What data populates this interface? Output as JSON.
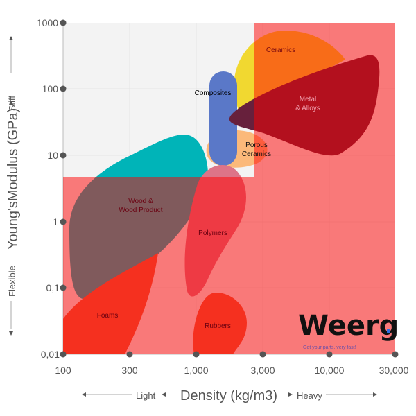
{
  "y_axis": {
    "title": "Young'sModulus (GPa)",
    "high_label": "Stiff",
    "low_label": "Flexible",
    "ticks": [
      "1000",
      "100",
      "10",
      "1",
      "0,1",
      "0,01"
    ]
  },
  "x_axis": {
    "title": "Density (kg/m3)",
    "low_label": "Light",
    "high_label": "Heavy",
    "ticks": [
      "100",
      "300",
      "1,000",
      "3,000",
      "10,000",
      "30,000"
    ]
  },
  "materials": [
    {
      "name": "Ceramics",
      "label": "Ceramics",
      "color": "#f1d830"
    },
    {
      "name": "Metal & Alloys",
      "label1": "Metal",
      "label2": "& Alloys",
      "color": "#67203c"
    },
    {
      "name": "Composites",
      "label": "Composites",
      "color": "#5a78c8"
    },
    {
      "name": "Porous Ceramics",
      "label1": "Porous",
      "label2": "Ceramics",
      "color": "#fbb97a"
    },
    {
      "name": "Wood & Wood Product",
      "label1": "Wood &",
      "label2": "Wood Product",
      "color": "#00b4b8"
    },
    {
      "name": "Polymers",
      "label": "Polymers",
      "color": "#dd7488"
    },
    {
      "name": "Foams",
      "label": "Foams",
      "color": "#eb603e"
    },
    {
      "name": "Rubbers",
      "label": "Rubbers",
      "color": "#eb603e"
    }
  ],
  "overlay_color": "#ff0000",
  "logo": {
    "text": "Weerg",
    "tagline": "Get your parts, very fast!",
    "dot_color": "#2f6ee0"
  }
}
